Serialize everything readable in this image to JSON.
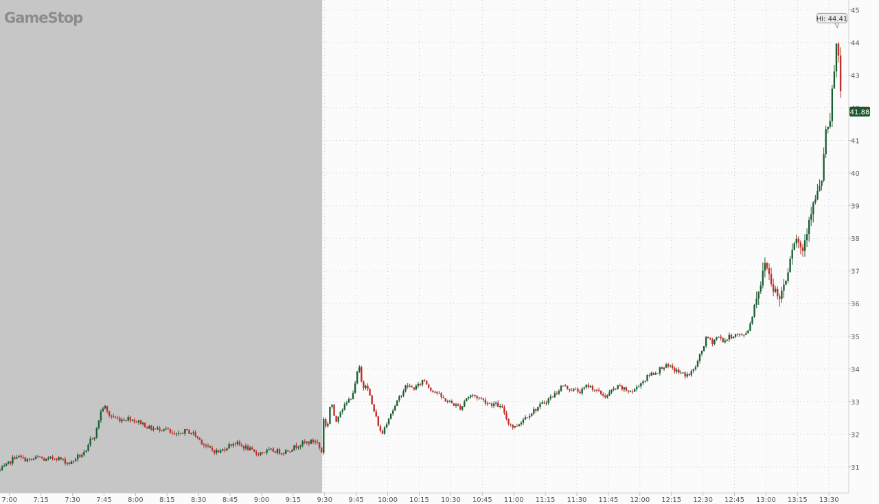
{
  "brand": "GameStop",
  "high_label": "Hi: 44.41",
  "last_price_label": "41.88",
  "colors": {
    "up": "#1c5e33",
    "down": "#c0302b",
    "premarket_shade": "#c6c6c6",
    "last_price_badge": "#1e5631",
    "background": "#fbfbfb"
  },
  "chart_data": {
    "type": "candlestick",
    "title": "",
    "ylim": [
      30.2,
      45.3
    ],
    "y_ticks": [
      31,
      32,
      33,
      34,
      35,
      36,
      37,
      38,
      39,
      40,
      41,
      42,
      43,
      44,
      45
    ],
    "y_tick_labels": [
      "31",
      "32",
      "33",
      "34",
      "35",
      "36",
      "37",
      "38",
      "39",
      "40",
      "41",
      "42",
      "43",
      "44",
      "45"
    ],
    "x_tick_labels": [
      "7:00",
      "7:15",
      "7:30",
      "7:45",
      "8:00",
      "8:15",
      "8:30",
      "8:45",
      "9:00",
      "9:15",
      "9:30",
      "9:45",
      "10:00",
      "10:15",
      "10:30",
      "10:45",
      "11:00",
      "11:15",
      "11:30",
      "11:45",
      "12:00",
      "12:15",
      "12:30",
      "12:45",
      "13:00",
      "13:15",
      "13:30"
    ],
    "x_ticks_min": [
      420,
      435,
      450,
      465,
      480,
      495,
      510,
      525,
      540,
      555,
      570,
      585,
      600,
      615,
      630,
      645,
      660,
      675,
      690,
      705,
      720,
      735,
      750,
      765,
      780,
      795,
      810
    ],
    "xlim_min": [
      415.5,
      819.4
    ],
    "premarket_shade_until_min": 568.8,
    "grid": true,
    "high": 44.41,
    "last": 41.88,
    "price_path": [
      [
        415.5,
        30.9
      ],
      [
        418,
        31.0
      ],
      [
        421,
        31.2
      ],
      [
        423,
        31.35
      ],
      [
        426,
        31.25
      ],
      [
        430,
        31.2
      ],
      [
        434,
        31.3
      ],
      [
        437,
        31.2
      ],
      [
        442,
        31.3
      ],
      [
        447,
        31.15
      ],
      [
        449,
        31.1
      ],
      [
        452,
        31.3
      ],
      [
        457,
        31.45
      ],
      [
        458,
        31.8
      ],
      [
        461,
        32.0
      ],
      [
        463,
        32.6
      ],
      [
        465,
        32.9
      ],
      [
        467,
        32.6
      ],
      [
        470,
        32.5
      ],
      [
        473,
        32.45
      ],
      [
        477,
        32.5
      ],
      [
        480,
        32.4
      ],
      [
        483,
        32.35
      ],
      [
        486,
        32.2
      ],
      [
        490,
        32.15
      ],
      [
        494,
        32.2
      ],
      [
        497,
        32.0
      ],
      [
        500,
        31.95
      ],
      [
        503,
        32.1
      ],
      [
        507,
        32.05
      ],
      [
        511,
        31.8
      ],
      [
        514,
        31.6
      ],
      [
        517,
        31.5
      ],
      [
        520,
        31.45
      ],
      [
        523,
        31.6
      ],
      [
        527,
        31.75
      ],
      [
        530,
        31.65
      ],
      [
        534,
        31.55
      ],
      [
        537,
        31.4
      ],
      [
        540,
        31.45
      ],
      [
        545,
        31.5
      ],
      [
        550,
        31.45
      ],
      [
        554,
        31.55
      ],
      [
        558,
        31.7
      ],
      [
        562,
        31.75
      ],
      [
        566,
        31.8
      ],
      [
        568.5,
        31.45
      ],
      [
        569.5,
        32.5
      ],
      [
        571,
        32.1
      ],
      [
        573,
        33.1
      ],
      [
        575,
        32.3
      ],
      [
        577,
        32.7
      ],
      [
        580,
        32.9
      ],
      [
        583,
        33.2
      ],
      [
        585,
        33.6
      ],
      [
        586,
        34.2
      ],
      [
        588,
        33.4
      ],
      [
        590,
        33.6
      ],
      [
        592,
        33.0
      ],
      [
        594,
        32.6
      ],
      [
        596,
        32.2
      ],
      [
        597,
        31.95
      ],
      [
        599,
        32.3
      ],
      [
        601,
        32.6
      ],
      [
        604,
        32.9
      ],
      [
        606,
        33.2
      ],
      [
        609,
        33.5
      ],
      [
        612,
        33.4
      ],
      [
        615,
        33.5
      ],
      [
        617,
        33.7
      ],
      [
        620,
        33.4
      ],
      [
        623,
        33.3
      ],
      [
        626,
        33.1
      ],
      [
        629,
        33.0
      ],
      [
        632,
        32.9
      ],
      [
        635,
        32.8
      ],
      [
        637,
        33.1
      ],
      [
        640,
        33.2
      ],
      [
        644,
        33.1
      ],
      [
        648,
        32.95
      ],
      [
        652,
        32.9
      ],
      [
        655,
        32.75
      ],
      [
        657,
        32.4
      ],
      [
        660,
        32.2
      ],
      [
        662,
        32.3
      ],
      [
        665,
        32.5
      ],
      [
        668,
        32.65
      ],
      [
        671,
        32.8
      ],
      [
        674,
        32.95
      ],
      [
        677,
        33.1
      ],
      [
        680,
        33.25
      ],
      [
        683,
        33.5
      ],
      [
        686,
        33.4
      ],
      [
        689,
        33.35
      ],
      [
        692,
        33.3
      ],
      [
        695,
        33.5
      ],
      [
        698,
        33.4
      ],
      [
        701,
        33.25
      ],
      [
        704,
        33.15
      ],
      [
        707,
        33.35
      ],
      [
        710,
        33.45
      ],
      [
        713,
        33.35
      ],
      [
        717,
        33.3
      ],
      [
        719,
        33.5
      ],
      [
        722,
        33.65
      ],
      [
        725,
        33.85
      ],
      [
        728,
        33.9
      ],
      [
        731,
        34.1
      ],
      [
        734,
        34.05
      ],
      [
        737,
        33.95
      ],
      [
        740,
        33.85
      ],
      [
        743,
        33.8
      ],
      [
        746,
        34.0
      ],
      [
        748,
        34.3
      ],
      [
        750,
        34.65
      ],
      [
        752,
        35.0
      ],
      [
        754,
        34.8
      ],
      [
        757,
        35.0
      ],
      [
        760,
        34.85
      ],
      [
        763,
        35.0
      ],
      [
        766,
        35.05
      ],
      [
        769,
        35.0
      ],
      [
        772,
        35.25
      ],
      [
        774,
        35.8
      ],
      [
        776,
        36.4
      ],
      [
        778,
        36.7
      ],
      [
        779.5,
        37.3
      ],
      [
        781,
        37.0
      ],
      [
        783,
        36.6
      ],
      [
        785,
        36.3
      ],
      [
        786,
        36.1
      ],
      [
        788,
        36.5
      ],
      [
        790,
        36.9
      ],
      [
        791.5,
        37.5
      ],
      [
        793,
        37.9
      ],
      [
        795,
        38.0
      ],
      [
        797,
        37.6
      ],
      [
        798,
        37.8
      ],
      [
        799.5,
        38.3
      ],
      [
        801,
        38.8
      ],
      [
        802.5,
        39.0
      ],
      [
        804,
        39.3
      ],
      [
        805.5,
        39.5
      ],
      [
        807,
        40.0
      ],
      [
        808,
        41.0
      ],
      [
        809,
        41.7
      ],
      [
        810,
        40.8
      ],
      [
        811,
        42.2
      ],
      [
        812,
        42.8
      ],
      [
        813,
        43.5
      ],
      [
        814,
        44.3
      ],
      [
        815,
        42.8
      ],
      [
        816,
        41.88
      ]
    ],
    "premarket_rows": [
      [
        419,
        31.05
      ],
      [
        420,
        31.15
      ],
      [
        421,
        31.2
      ],
      [
        422,
        31.28
      ],
      [
        423,
        31.35
      ],
      [
        424,
        31.3
      ],
      [
        425,
        31.25
      ],
      [
        426,
        31.28
      ],
      [
        427,
        31.25
      ],
      [
        428,
        31.3
      ],
      [
        429,
        31.22
      ]
    ]
  }
}
